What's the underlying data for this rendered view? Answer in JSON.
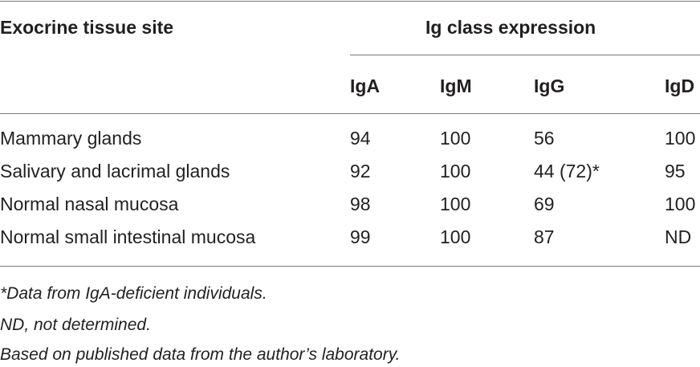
{
  "table": {
    "header": {
      "site_label": "Exocrine tissue site",
      "group_label": "Ig class expression",
      "columns": [
        "IgA",
        "IgM",
        "IgG",
        "IgD"
      ]
    },
    "rows": [
      {
        "site": "Mammary glands",
        "values": [
          "94",
          "100",
          "56",
          "100"
        ]
      },
      {
        "site": "Salivary and lacrimal glands",
        "values": [
          "92",
          "100",
          "44 (72)*",
          "95"
        ]
      },
      {
        "site": "Normal nasal mucosa",
        "values": [
          "98",
          "100",
          "69",
          "100"
        ]
      },
      {
        "site": "Normal small intestinal mucosa",
        "values": [
          "99",
          "100",
          "87",
          "ND"
        ]
      }
    ]
  },
  "footnotes": [
    "*Data from IgA-deficient individuals.",
    "ND, not determined.",
    "Based on published data from the author’s laboratory."
  ]
}
